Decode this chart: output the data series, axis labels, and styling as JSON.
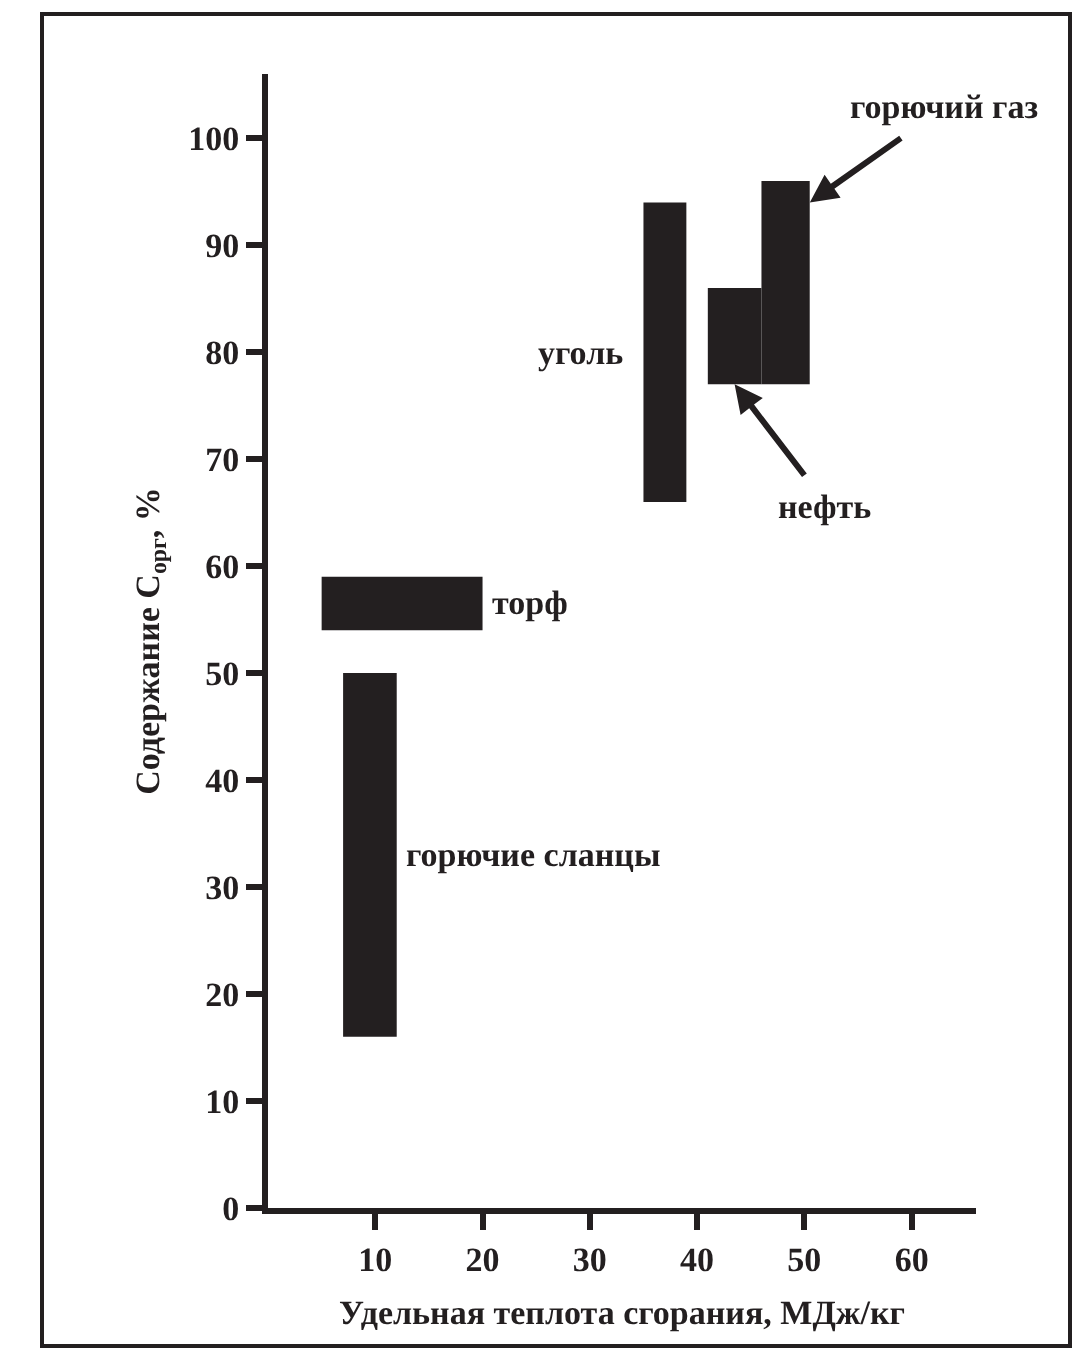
{
  "chart_data": {
    "type": "line",
    "xlabel": "Удельная теплота сгорания, МДж/кг",
    "ylabel": "Содержание C$_{орг}$, %",
    "xlim": [
      0,
      66
    ],
    "ylim": [
      0,
      106
    ],
    "xticks": [
      10,
      20,
      30,
      40,
      50,
      60
    ],
    "yticks": [
      0,
      10,
      20,
      30,
      40,
      50,
      60,
      70,
      80,
      90,
      100
    ],
    "series": [
      {
        "name": "горючие сланцы",
        "color": "#231f20",
        "x": [
          7,
          12
        ],
        "values": [
          null,
          null
        ],
        "lower": [
          16,
          16
        ],
        "upper": [
          50,
          50
        ]
      },
      {
        "name": "торф",
        "color": "#231f20",
        "x": [
          5,
          20
        ],
        "values": [
          null,
          null
        ],
        "lower": [
          54,
          54
        ],
        "upper": [
          59,
          59
        ]
      },
      {
        "name": "уголь",
        "color": "#231f20",
        "x": [
          35,
          39
        ],
        "values": [
          null,
          null
        ],
        "lower": [
          66,
          66
        ],
        "upper": [
          94,
          94
        ]
      },
      {
        "name": "нефть",
        "color": "#231f20",
        "x": [
          41,
          46
        ],
        "values": [
          null,
          null
        ],
        "lower": [
          77,
          77
        ],
        "upper": [
          86,
          86
        ]
      },
      {
        "name": "горючий газ",
        "color": "#231f20",
        "x": [
          46,
          50.5
        ],
        "values": [
          null,
          null
        ],
        "lower": [
          77,
          77
        ],
        "upper": [
          96,
          96
        ]
      }
    ]
  }
}
